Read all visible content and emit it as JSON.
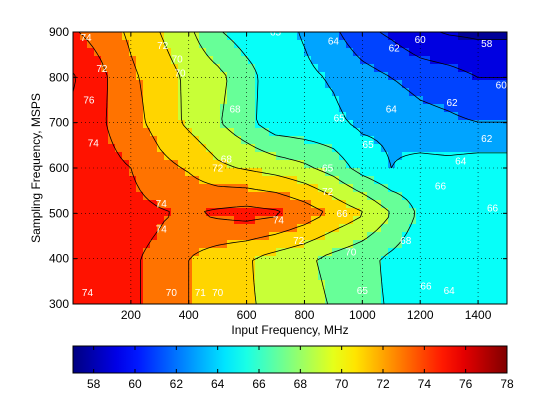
{
  "chart_data": {
    "type": "heatmap",
    "subtype": "filled-contour",
    "title": "",
    "xlabel": "Input Frequency, MHz",
    "ylabel": "Sampling Frequency, MSPS",
    "xlim": [
      0,
      1500
    ],
    "ylim": [
      300,
      900
    ],
    "xticks": [
      "200",
      "400",
      "600",
      "800",
      "1000",
      "1200",
      "1400"
    ],
    "yticks": [
      "300",
      "400",
      "500",
      "600",
      "700",
      "800",
      "900"
    ],
    "grid": true,
    "colormap": "jet",
    "colorbar": {
      "placement": "bottom",
      "range": [
        57,
        78
      ],
      "ticks": [
        "58",
        "60",
        "62",
        "64",
        "66",
        "68",
        "70",
        "72",
        "74",
        "76",
        "78"
      ]
    },
    "contour_levels": [
      58,
      60,
      62,
      64,
      66,
      68,
      70,
      72,
      74,
      76
    ],
    "x": [
      0,
      100,
      200,
      300,
      400,
      500,
      600,
      700,
      800,
      900,
      1000,
      1100,
      1200,
      1300,
      1400,
      1500
    ],
    "y": [
      300,
      400,
      500,
      600,
      700,
      800,
      900
    ],
    "z": [
      [
        74.6,
        74.4,
        74.2,
        73.6,
        72.0,
        71.0,
        70.2,
        69.6,
        68.8,
        67.8,
        66.6,
        65.8,
        64.4,
        64.0,
        64.2,
        64.2
      ],
      [
        74.6,
        74.4,
        74.2,
        73.6,
        72.0,
        71.0,
        70.2,
        69.2,
        68.4,
        67.4,
        66.6,
        65.6,
        64.6,
        64.4,
        64.6,
        64.6
      ],
      [
        74.8,
        74.8,
        74.6,
        74.2,
        73.8,
        74.4,
        74.8,
        74.4,
        73.2,
        71.6,
        70.2,
        68.0,
        65.6,
        65.4,
        65.6,
        65.6
      ],
      [
        75.0,
        74.6,
        74.0,
        72.6,
        71.8,
        70.4,
        69.8,
        69.2,
        68.4,
        67.2,
        65.2,
        64.0,
        64.6,
        64.6,
        65.0,
        65.0
      ],
      [
        75.6,
        74.2,
        72.8,
        71.2,
        69.6,
        68.2,
        66.6,
        64.8,
        64.6,
        64.4,
        63.6,
        63.6,
        62.8,
        62.4,
        62.0,
        62.0
      ],
      [
        76.2,
        74.4,
        72.4,
        71.0,
        69.6,
        68.6,
        66.8,
        64.8,
        64.4,
        63.8,
        62.8,
        62.0,
        61.2,
        60.8,
        60.0,
        60.0
      ],
      [
        74.2,
        73.2,
        71.6,
        70.0,
        68.4,
        66.2,
        65.0,
        64.8,
        63.8,
        62.4,
        60.6,
        59.6,
        58.4,
        57.8,
        57.6,
        57.6
      ]
    ],
    "contour_labels": [
      {
        "text": "74",
        "x": 45,
        "y": 888
      },
      {
        "text": "76",
        "x": 55,
        "y": 750
      },
      {
        "text": "74",
        "x": 70,
        "y": 655
      },
      {
        "text": "74",
        "x": 305,
        "y": 522
      },
      {
        "text": "74",
        "x": 305,
        "y": 465
      },
      {
        "text": "74",
        "x": 710,
        "y": 485
      },
      {
        "text": "74",
        "x": 50,
        "y": 325
      },
      {
        "text": "72",
        "x": 100,
        "y": 820
      },
      {
        "text": "72",
        "x": 310,
        "y": 870
      },
      {
        "text": "70",
        "x": 370,
        "y": 810
      },
      {
        "text": "70",
        "x": 360,
        "y": 840
      },
      {
        "text": "70",
        "x": 340,
        "y": 325
      },
      {
        "text": "71",
        "x": 440,
        "y": 325
      },
      {
        "text": "70",
        "x": 500,
        "y": 325
      },
      {
        "text": "68",
        "x": 560,
        "y": 730
      },
      {
        "text": "68",
        "x": 530,
        "y": 620
      },
      {
        "text": "72",
        "x": 500,
        "y": 600
      },
      {
        "text": "72",
        "x": 880,
        "y": 548
      },
      {
        "text": "65",
        "x": 880,
        "y": 600
      },
      {
        "text": "72",
        "x": 780,
        "y": 440
      },
      {
        "text": "70",
        "x": 960,
        "y": 415
      },
      {
        "text": "68",
        "x": 1150,
        "y": 440
      },
      {
        "text": "65",
        "x": 1020,
        "y": 652
      },
      {
        "text": "66",
        "x": 930,
        "y": 500
      },
      {
        "text": "65",
        "x": 1000,
        "y": 330
      },
      {
        "text": "66",
        "x": 1220,
        "y": 340
      },
      {
        "text": "64",
        "x": 1300,
        "y": 330
      },
      {
        "text": "65",
        "x": 920,
        "y": 710
      },
      {
        "text": "64",
        "x": 1100,
        "y": 730
      },
      {
        "text": "64",
        "x": 900,
        "y": 880
      },
      {
        "text": "65",
        "x": 700,
        "y": 900
      },
      {
        "text": "62",
        "x": 1110,
        "y": 865
      },
      {
        "text": "60",
        "x": 1200,
        "y": 883
      },
      {
        "text": "58",
        "x": 1430,
        "y": 875
      },
      {
        "text": "60",
        "x": 1480,
        "y": 783
      },
      {
        "text": "62",
        "x": 1310,
        "y": 745
      },
      {
        "text": "62",
        "x": 1430,
        "y": 665
      },
      {
        "text": "64",
        "x": 1340,
        "y": 615
      },
      {
        "text": "66",
        "x": 1270,
        "y": 560
      },
      {
        "text": "66",
        "x": 1450,
        "y": 512
      }
    ]
  }
}
